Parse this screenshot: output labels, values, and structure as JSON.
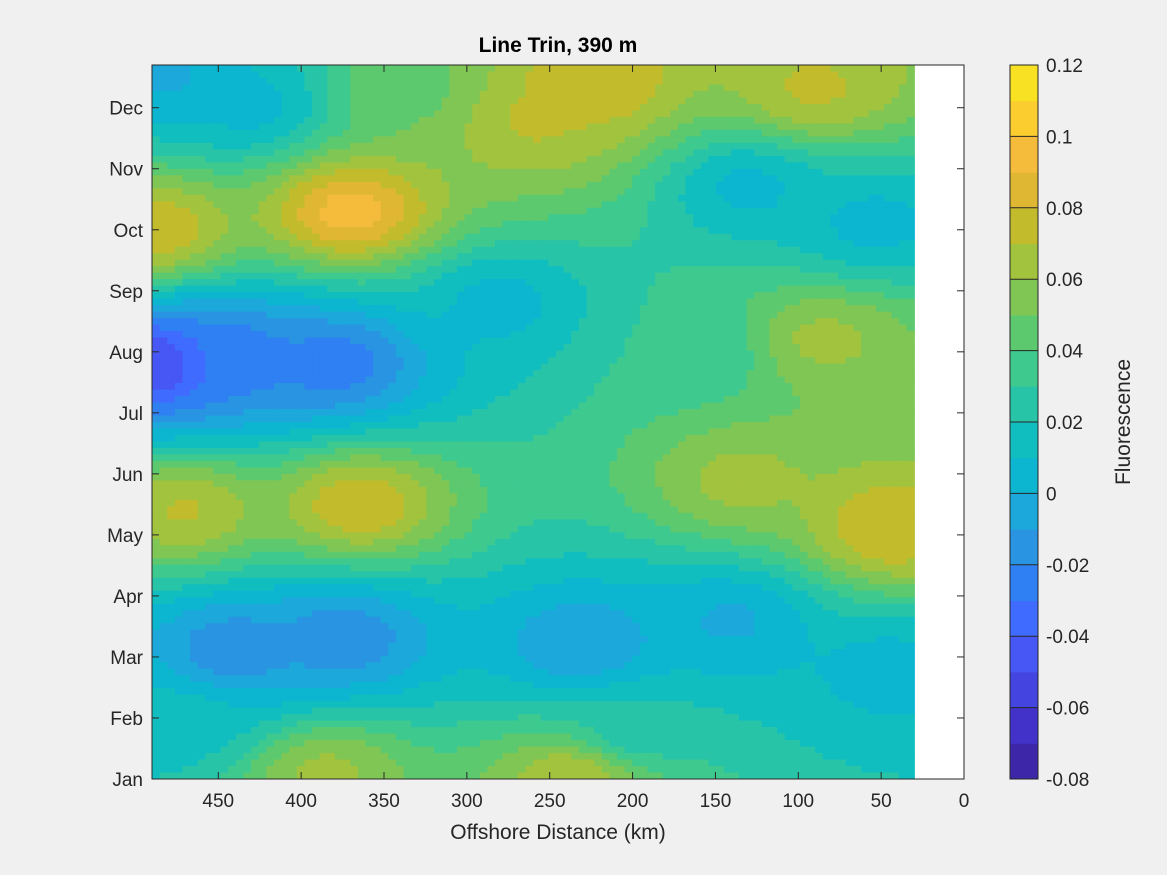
{
  "chart_data": {
    "type": "heatmap",
    "subtype": "filled-contour",
    "title": "Line Trin, 390 m",
    "xlabel": "Offshore Distance (km)",
    "ylabel": "",
    "colorbar_label": "Fluorescence",
    "x_reversed": true,
    "xlim": [
      0,
      490
    ],
    "x_ticks": [
      450,
      400,
      350,
      300,
      250,
      200,
      150,
      100,
      50,
      0
    ],
    "x_tick_labels": [
      "450",
      "400",
      "350",
      "300",
      "250",
      "200",
      "150",
      "100",
      "50",
      "0"
    ],
    "ylim": [
      1,
      12.7
    ],
    "y_ticks": [
      1,
      2,
      3,
      4,
      5,
      6,
      7,
      8,
      9,
      10,
      11,
      12
    ],
    "y_tick_labels": [
      "Jan",
      "Feb",
      "Mar",
      "Apr",
      "May",
      "Jun",
      "Jul",
      "Aug",
      "Sep",
      "Oct",
      "Nov",
      "Dec"
    ],
    "data_x_extent": [
      30,
      490
    ],
    "clim": [
      -0.08,
      0.12
    ],
    "colorbar_ticks": [
      0.12,
      0.1,
      0.08,
      0.06,
      0.04,
      0.02,
      0,
      -0.02,
      -0.04,
      -0.06,
      -0.08
    ],
    "colorbar_tick_labels": [
      "0.12",
      "0.1",
      "0.08",
      "0.06",
      "0.04",
      "0.02",
      "0",
      "-0.02",
      "-0.04",
      "-0.06",
      "-0.08"
    ],
    "contour_levels": [
      -0.08,
      -0.07,
      -0.06,
      -0.05,
      -0.04,
      -0.03,
      -0.02,
      -0.01,
      0,
      0.01,
      0.02,
      0.03,
      0.04,
      0.05,
      0.06,
      0.07,
      0.08,
      0.09,
      0.1,
      0.11,
      0.12
    ],
    "colormap": [
      "#3e26a8",
      "#4232c9",
      "#4444e0",
      "#4657f5",
      "#3f6bfe",
      "#2f80f2",
      "#2894e2",
      "#1ca8db",
      "#0cb5d0",
      "#10bebf",
      "#28c4a8",
      "#3ec98f",
      "#5dc96f",
      "#80c654",
      "#a2c33e",
      "#c2bc2d",
      "#e0b733",
      "#f4bc3a",
      "#fbcd2f",
      "#f8e122",
      "#f7ec12"
    ],
    "features": [
      {
        "x": 370,
        "y": 10.3,
        "value": 0.11
      },
      {
        "x": 490,
        "y": 10.0,
        "value": 0.09
      },
      {
        "x": 225,
        "y": 12.4,
        "value": 0.09
      },
      {
        "x": 260,
        "y": 11.8,
        "value": 0.08
      },
      {
        "x": 90,
        "y": 12.3,
        "value": 0.08
      },
      {
        "x": 45,
        "y": 5.1,
        "value": 0.09
      },
      {
        "x": 365,
        "y": 5.5,
        "value": 0.09
      },
      {
        "x": 470,
        "y": 5.4,
        "value": 0.08
      },
      {
        "x": 235,
        "y": 1.0,
        "value": 0.08
      },
      {
        "x": 385,
        "y": 1.1,
        "value": 0.07
      },
      {
        "x": 490,
        "y": 7.8,
        "value": -0.07
      },
      {
        "x": 380,
        "y": 7.8,
        "value": -0.04
      },
      {
        "x": 440,
        "y": 7.9,
        "value": -0.04
      },
      {
        "x": 375,
        "y": 3.3,
        "value": -0.03
      },
      {
        "x": 440,
        "y": 3.1,
        "value": -0.03
      },
      {
        "x": 230,
        "y": 3.2,
        "value": -0.02
      },
      {
        "x": 140,
        "y": 3.6,
        "value": -0.01
      },
      {
        "x": 480,
        "y": 12.5,
        "value": -0.01
      },
      {
        "x": 130,
        "y": 10.7,
        "value": 0.0
      },
      {
        "x": 280,
        "y": 8.8,
        "value": 0.0
      },
      {
        "x": 55,
        "y": 10.1,
        "value": 0.0
      },
      {
        "x": 45,
        "y": 2.8,
        "value": 0.0
      },
      {
        "x": 430,
        "y": 12.0,
        "value": 0.0
      },
      {
        "x": 135,
        "y": 5.9,
        "value": 0.07
      },
      {
        "x": 85,
        "y": 8.2,
        "value": 0.07
      },
      {
        "x": 330,
        "y": 12.3,
        "value": 0.05
      },
      {
        "x": 470,
        "y": 2.0,
        "value": 0.01
      },
      {
        "x": 160,
        "y": 8.0,
        "value": 0.03
      },
      {
        "x": 200,
        "y": 1.8,
        "value": 0.02
      }
    ]
  }
}
